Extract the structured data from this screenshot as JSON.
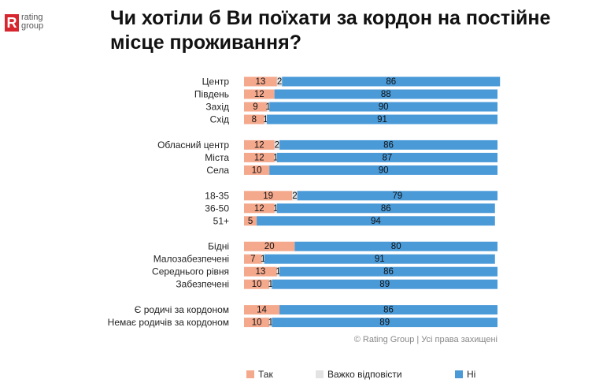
{
  "logo": {
    "letter": "R",
    "line1": "rating",
    "line2": "group"
  },
  "colors": {
    "yes": "#f4a98d",
    "hard": "#e3e3e3",
    "no": "#4a9ad8"
  },
  "chart_data": {
    "type": "bar",
    "orientation": "horizontal",
    "stacked": true,
    "title": "Чи хотіли б Ви поїхати за кордон на постійне місце проживання?",
    "xlim": [
      0,
      100
    ],
    "groups": [
      [
        "Центр",
        "Південь",
        "Захід",
        "Схід"
      ],
      [
        "Обласний центр",
        "Міста",
        "Села"
      ],
      [
        "18-35",
        "36-50",
        "51+"
      ],
      [
        "Бідні",
        "Малозабезпечені",
        "Середнього рівня",
        "Забезпечені"
      ],
      [
        "Є родичі за кордоном",
        "Немає родичів за кордоном"
      ]
    ],
    "categories": [
      "Центр",
      "Південь",
      "Захід",
      "Схід",
      "Обласний центр",
      "Міста",
      "Села",
      "18-35",
      "36-50",
      "51+",
      "Бідні",
      "Малозабезпечені",
      "Середнього рівня",
      "Забезпечені",
      "Є родичі за кордоном",
      "Немає родичів за кордоном"
    ],
    "series": [
      {
        "name": "Так",
        "values": [
          13,
          12,
          9,
          8,
          12,
          12,
          10,
          19,
          12,
          5,
          20,
          7,
          13,
          10,
          14,
          10
        ]
      },
      {
        "name": "Важко відповісти",
        "values": [
          2,
          0,
          1,
          1,
          2,
          1,
          0,
          2,
          1,
          0,
          0,
          1,
          1,
          1,
          0,
          1
        ]
      },
      {
        "name": "Ні",
        "values": [
          86,
          88,
          90,
          91,
          86,
          87,
          90,
          79,
          86,
          94,
          80,
          91,
          86,
          89,
          86,
          89
        ]
      }
    ],
    "legend_position": "bottom",
    "copyright": "© Rating Group | Усі права захищені"
  }
}
